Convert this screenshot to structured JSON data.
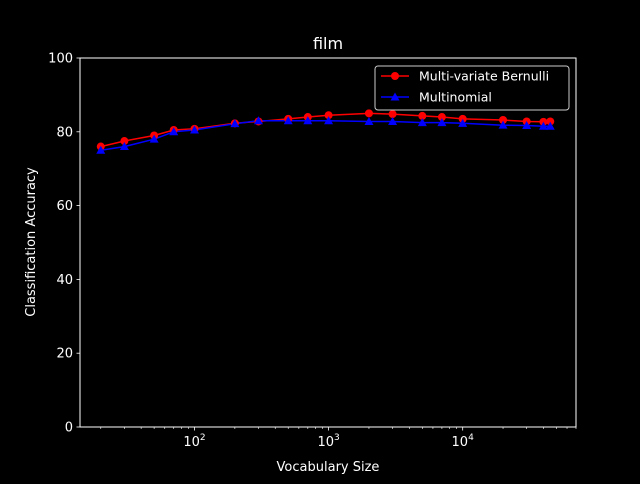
{
  "chart_data": {
    "type": "line",
    "title": "film",
    "xlabel": "Vocabulary Size",
    "ylabel": "Classification Accuracy",
    "xscale": "log",
    "xlim": [
      14,
      70000
    ],
    "ylim": [
      0,
      100
    ],
    "yticks": [
      0,
      20,
      40,
      60,
      80,
      100
    ],
    "xticks": [
      {
        "value": 100,
        "base": "10",
        "exp": "2"
      },
      {
        "value": 1000,
        "base": "10",
        "exp": "3"
      },
      {
        "value": 10000,
        "base": "10",
        "exp": "4"
      }
    ],
    "grid": false,
    "legend_position": "top-right",
    "background": "#000000",
    "foreground": "#ffffff",
    "series": [
      {
        "name": "Multi-variate Bernulli",
        "color": "#ff0000",
        "marker": "circle",
        "x": [
          20,
          30,
          50,
          70,
          100,
          200,
          300,
          500,
          700,
          1000,
          2000,
          3000,
          5000,
          7000,
          10000,
          20000,
          30000,
          40000,
          45000
        ],
        "y": [
          76,
          77.5,
          79,
          80.5,
          80.8,
          82.3,
          82.8,
          83.5,
          84,
          84.5,
          85,
          84.8,
          84.3,
          84,
          83.5,
          83.2,
          82.8,
          82.7,
          82.8
        ]
      },
      {
        "name": "Multinomial",
        "color": "#0000ff",
        "marker": "triangle",
        "x": [
          20,
          30,
          50,
          70,
          100,
          200,
          300,
          500,
          700,
          1000,
          2000,
          3000,
          5000,
          7000,
          10000,
          20000,
          30000,
          40000,
          45000
        ],
        "y": [
          75,
          76,
          78,
          80,
          80.5,
          82.2,
          83,
          83,
          83,
          83,
          82.8,
          82.8,
          82.5,
          82.5,
          82.3,
          81.8,
          81.7,
          81.5,
          81.5
        ]
      }
    ]
  }
}
